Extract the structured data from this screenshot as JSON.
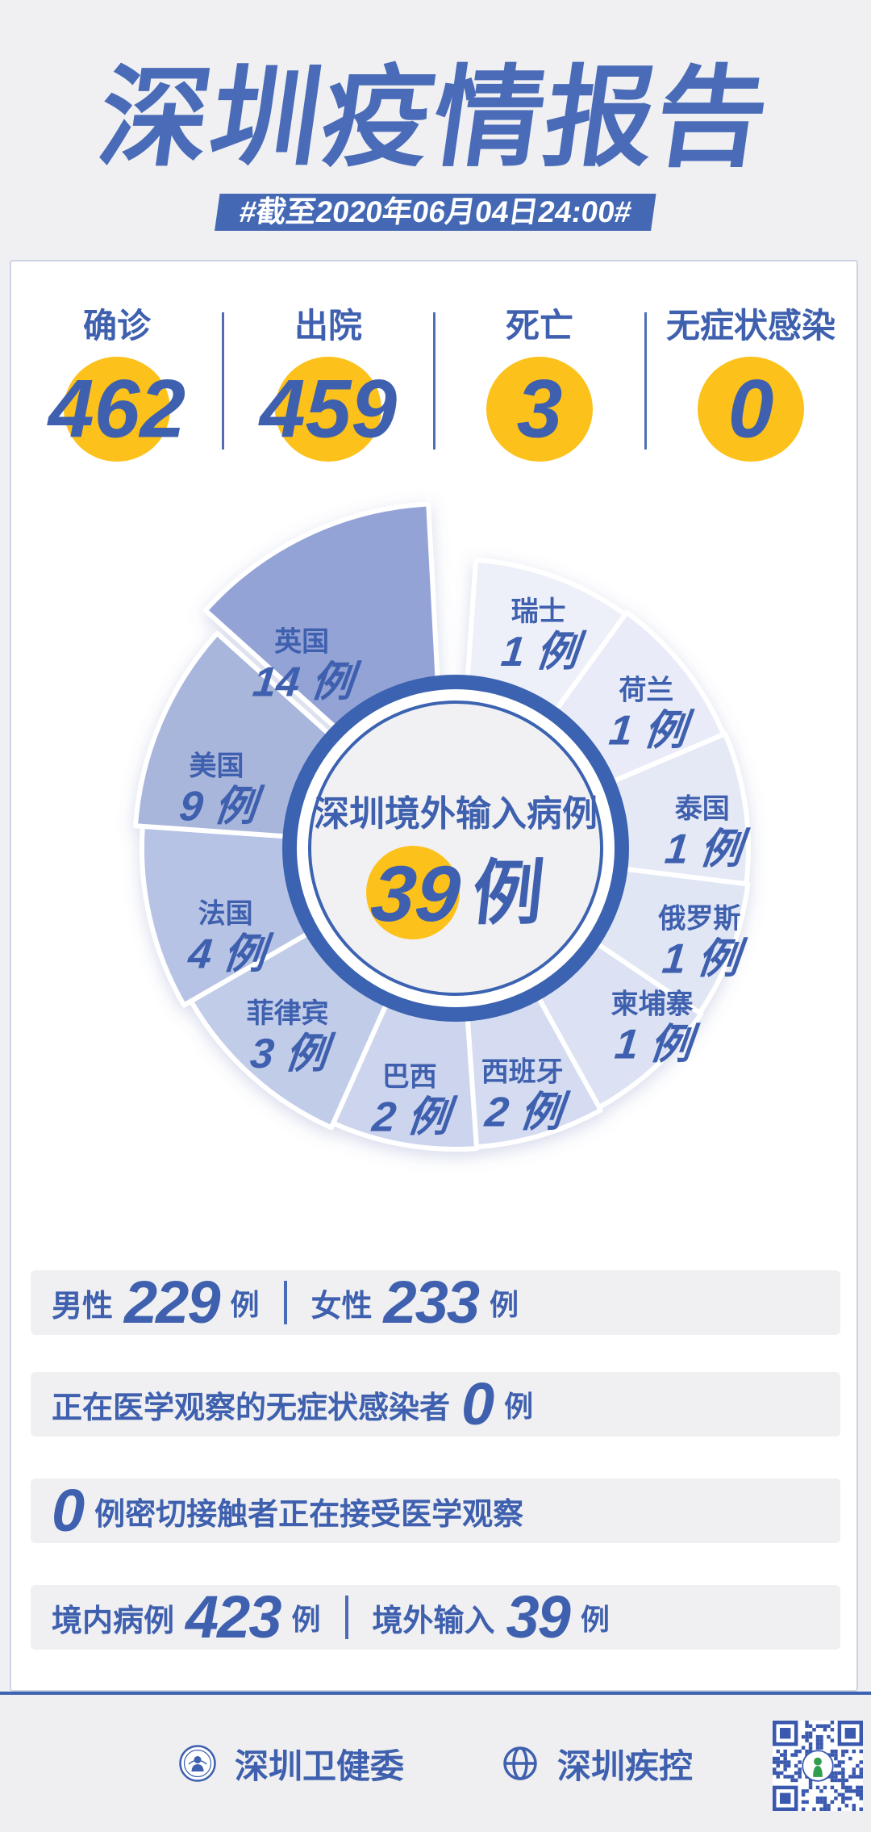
{
  "header": {
    "title": "深圳疫情报告",
    "subtitle": "#截至2020年06月04日24:00#"
  },
  "stats": [
    {
      "label": "确诊",
      "value": "462"
    },
    {
      "label": "出院",
      "value": "459"
    },
    {
      "label": "死亡",
      "value": "3"
    },
    {
      "label": "无症状感染",
      "value": "0"
    }
  ],
  "chart_data": {
    "type": "pie",
    "title": "深圳境外输入病例",
    "total": "39",
    "unit": "例",
    "legend_position": "labels-on-slices",
    "text_color": "#3e60ae",
    "ring_color": "#3b63b1",
    "highlight_color": "#fcc11a",
    "center": [
      565,
      1051
    ],
    "slices": [
      {
        "name": "瑞士",
        "value": 1,
        "start": 4,
        "end": 36,
        "r": 358,
        "color": "#edeff9",
        "label_angle": 20,
        "label_r": 300
      },
      {
        "name": "荷兰",
        "value": 1,
        "start": 36,
        "end": 67,
        "r": 361,
        "color": "#e9ecf8",
        "label_angle": 52,
        "label_r": 300
      },
      {
        "name": "泰国",
        "value": 1,
        "start": 67,
        "end": 97,
        "r": 363,
        "color": "#e5e9f6",
        "label_angle": 83,
        "label_r": 308
      },
      {
        "name": "俄罗斯",
        "value": 1,
        "start": 97,
        "end": 124,
        "r": 365,
        "color": "#e1e6f5",
        "label_angle": 108,
        "label_r": 318
      },
      {
        "name": "柬埔寨",
        "value": 1,
        "start": 124,
        "end": 151,
        "r": 367,
        "color": "#dce2f3",
        "label_angle": 130,
        "label_r": 318
      },
      {
        "name": "西班牙",
        "value": 2,
        "start": 151,
        "end": 176,
        "r": 371,
        "color": "#d5dcf1",
        "label_angle": 164,
        "label_r": 300
      },
      {
        "name": "巴西",
        "value": 2,
        "start": 176,
        "end": 204,
        "r": 373,
        "color": "#cdd5ee",
        "label_angle": 191,
        "label_r": 300
      },
      {
        "name": "菲律宾",
        "value": 3,
        "start": 204,
        "end": 240,
        "r": 379,
        "color": "#c1cce9",
        "label_angle": 224,
        "label_r": 300
      },
      {
        "name": "法国",
        "value": 4,
        "start": 240,
        "end": 274,
        "r": 389,
        "color": "#b7c3e4",
        "label_angle": 252,
        "label_r": 300
      },
      {
        "name": "美国",
        "value": 9,
        "start": 274,
        "end": 312,
        "r": 398,
        "color": "#a9b6dc",
        "label_angle": 287,
        "label_r": 310
      },
      {
        "name": "英国",
        "value": 14,
        "start": 312,
        "end": 357,
        "r": 400,
        "explode": 30,
        "color": "#94a3d6",
        "label_angle": 322,
        "label_r": 310
      }
    ]
  },
  "rows": [
    {
      "left_label": "男性",
      "left_value": "229",
      "unit": "例",
      "right_label": "女性",
      "right_value": "233"
    },
    {
      "label": "正在医学观察的无症状感染者",
      "value": "0",
      "unit": "例"
    },
    {
      "value": "0",
      "label": "例密切接触者正在接受医学观察"
    },
    {
      "left_label": "境内病例",
      "left_value": "423",
      "unit": "例",
      "right_label": "境外输入",
      "right_value": "39"
    }
  ],
  "footer": {
    "org1": "深圳卫健委",
    "org2": "深圳疾控",
    "org1_icon": "health-commission-seal",
    "org2_icon": "cdc-globe",
    "qr_icon": "qr-code"
  },
  "colors": {
    "accent": "#3e60ae",
    "highlight": "#fcc11a",
    "banner": "#4468b4",
    "title": "#4a6cb8",
    "page_bg": "#f0f0f2"
  }
}
